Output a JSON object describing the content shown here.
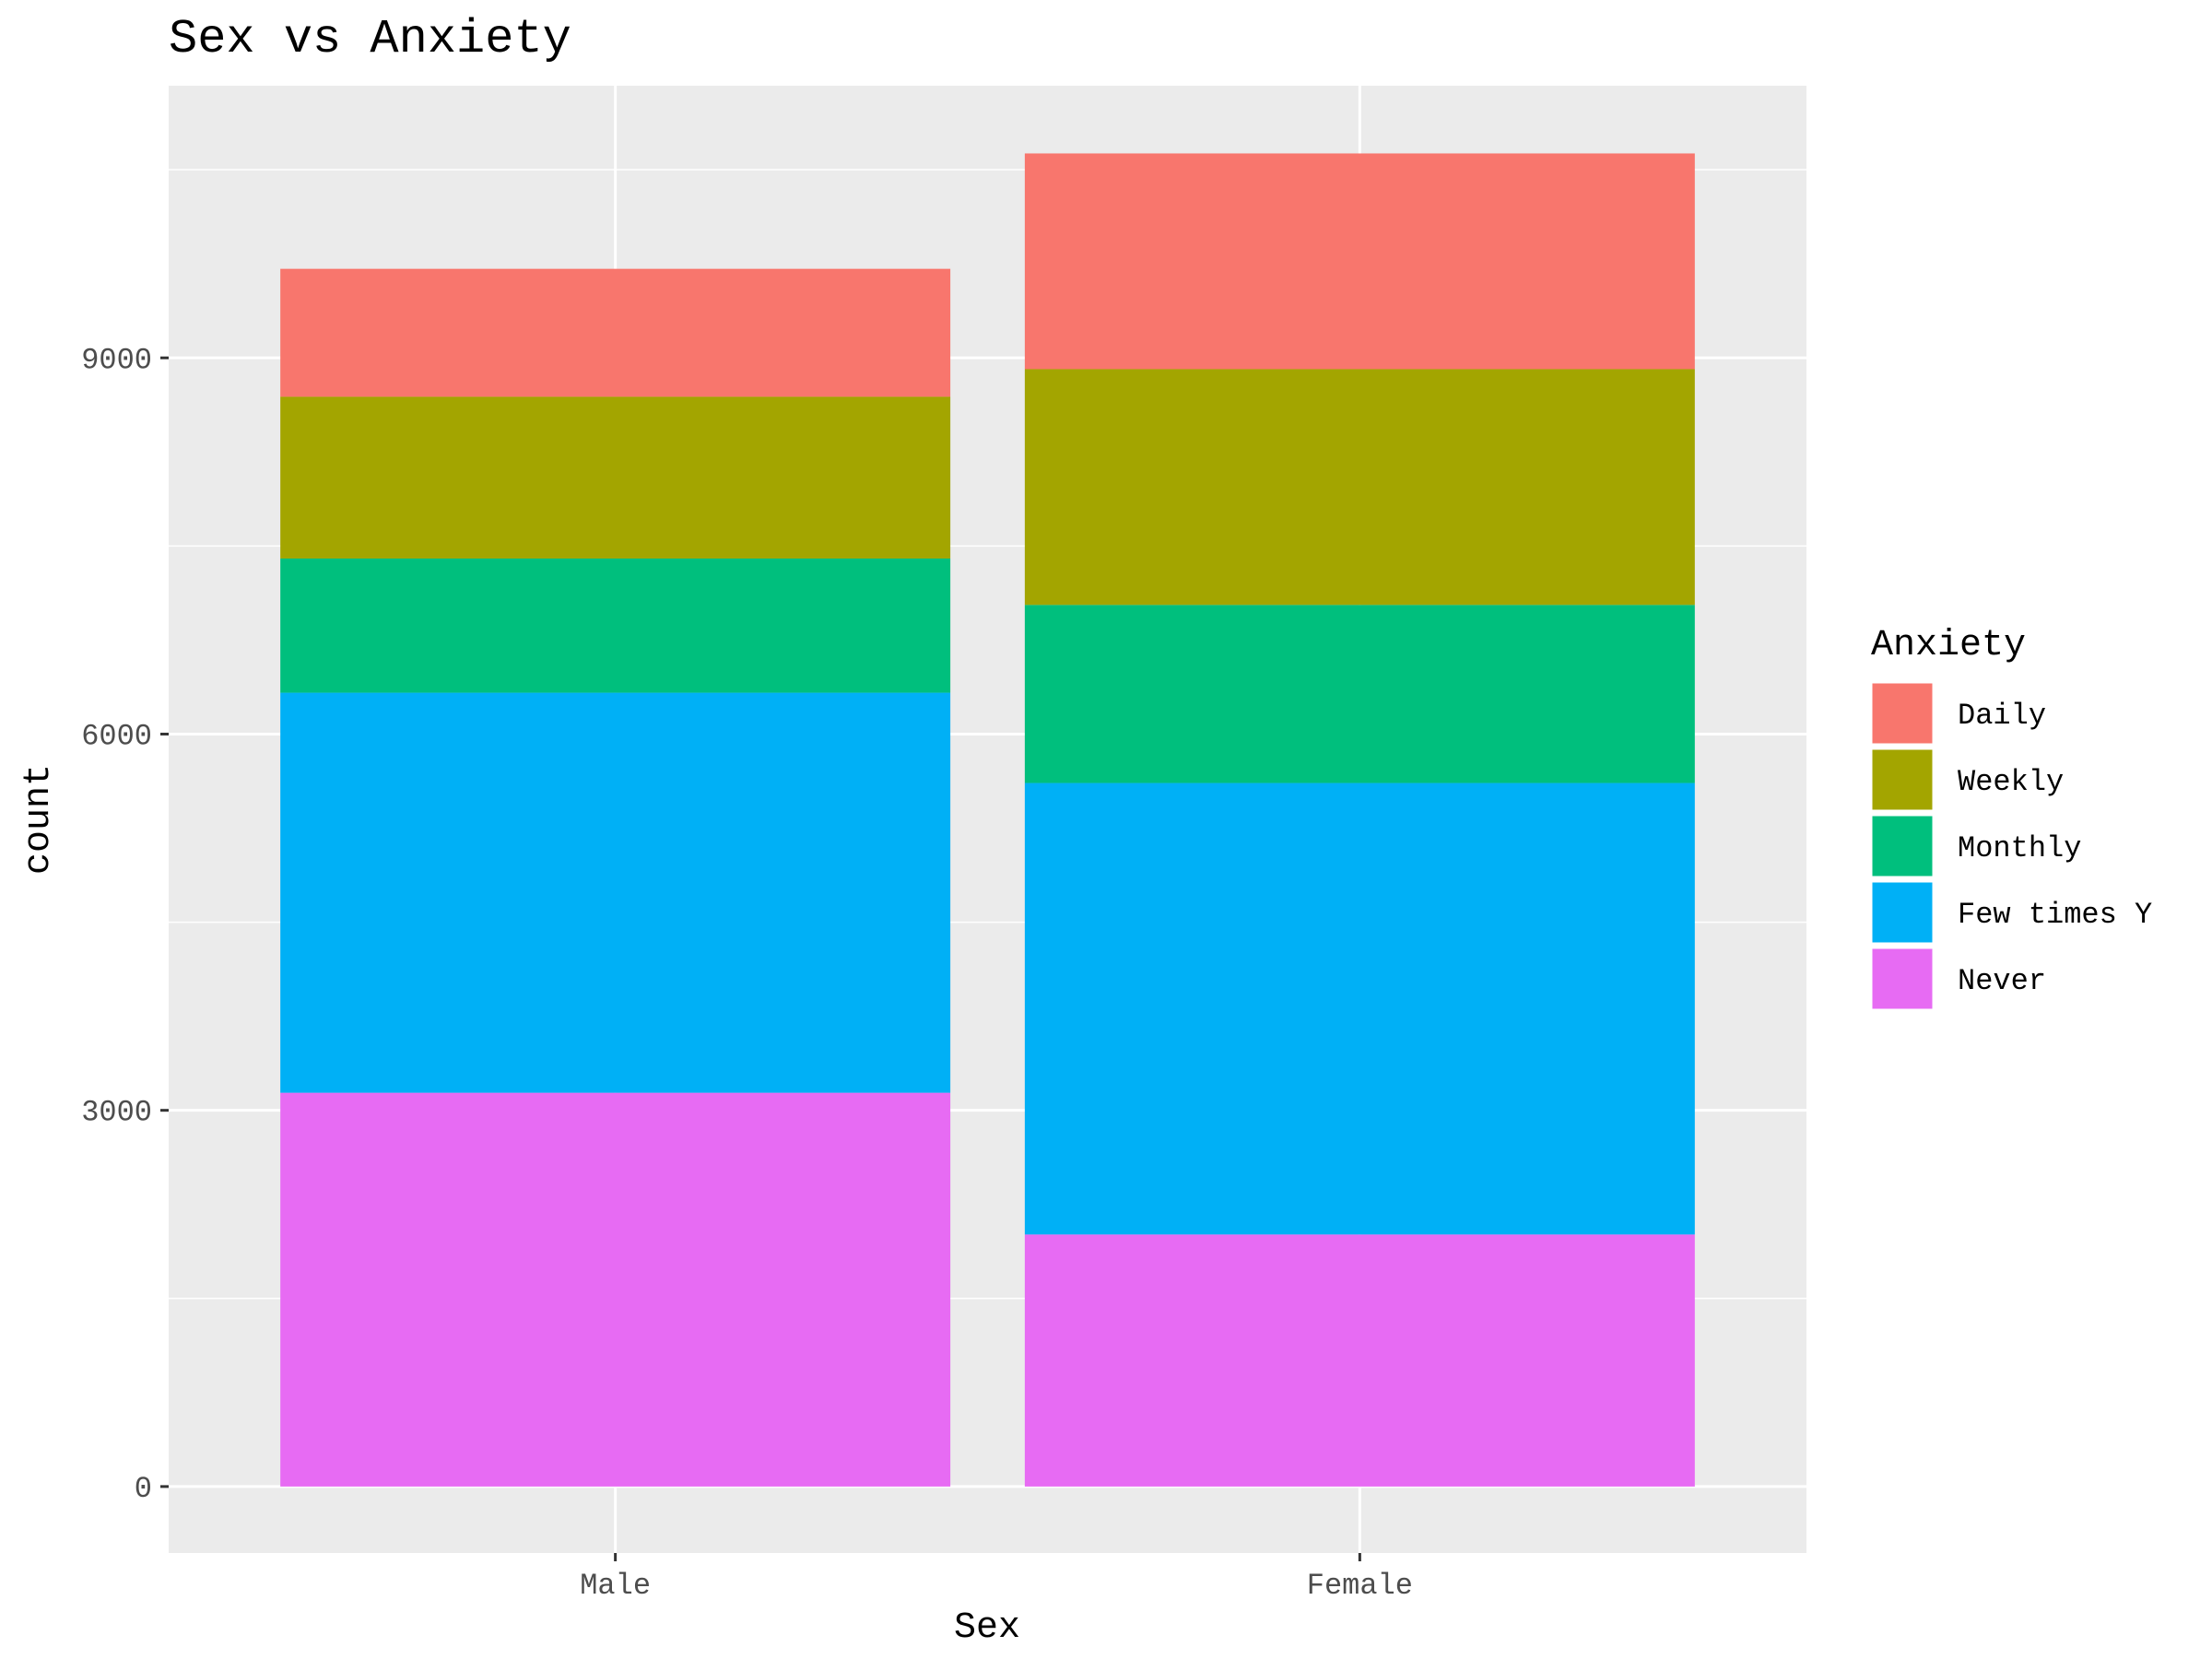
{
  "chart_data": {
    "type": "bar",
    "stacked": true,
    "title": "Sex vs Anxiety",
    "xlabel": "Sex",
    "ylabel": "count",
    "categories": [
      "Male",
      "Female"
    ],
    "yticks": [
      0,
      3000,
      6000,
      9000
    ],
    "ylim": [
      -530,
      11170
    ],
    "grid": true,
    "legend_title": "Anxiety",
    "legend_position": "right",
    "series": [
      {
        "name": "Never",
        "color": "#E76BF3",
        "values": [
          3140,
          2010
        ]
      },
      {
        "name": "Few times Y",
        "color": "#00B0F6",
        "values": [
          3190,
          3600
        ]
      },
      {
        "name": "Monthly",
        "color": "#00BF7D",
        "values": [
          1070,
          1420
        ]
      },
      {
        "name": "Weekly",
        "color": "#A3A500",
        "values": [
          1290,
          1880
        ]
      },
      {
        "name": "Daily",
        "color": "#F8766D",
        "values": [
          1020,
          1720
        ]
      }
    ],
    "legend_order": [
      "Daily",
      "Weekly",
      "Monthly",
      "Few times Y",
      "Never"
    ]
  }
}
